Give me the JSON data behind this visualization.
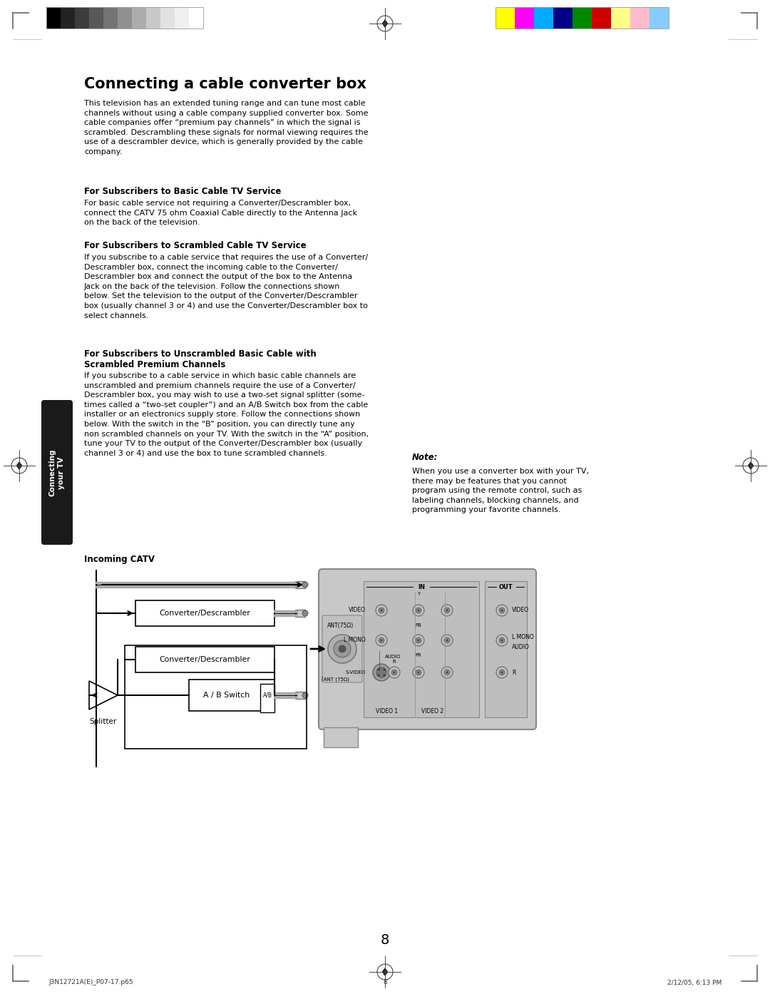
{
  "bg_color": "#ffffff",
  "page_number": "8",
  "footer_left": "J3N12721A(E)_P07-17.p65",
  "footer_right": "2/12/05, 6:13 PM",
  "sidebar_text": "Connecting\nyour TV",
  "sidebar_bg": "#1a1a1a",
  "sidebar_text_color": "#ffffff",
  "main_title": "Connecting a cable converter box",
  "intro_text": "This television has an extended tuning range and can tune most cable\nchannels without using a cable company supplied converter box. Some\ncable companies offer “premium pay channels” in which the signal is\nscrambled. Descrambling these signals for normal viewing requires the\nuse of a descrambler device, which is generally provided by the cable\ncompany.",
  "section1_title": "For Subscribers to Basic Cable TV Service",
  "section1_text": "For basic cable service not requiring a Converter/Descrambler box,\nconnect the CATV 75 ohm Coaxial Cable directly to the Antenna Jack\non the back of the television.",
  "section2_title": "For Subscribers to Scrambled Cable TV Service",
  "section2_text": "If you subscribe to a cable service that requires the use of a Converter/\nDescrambler box, connect the incoming cable to the Converter/\nDescrambler box and connect the output of the box to the Antenna\nJack on the back of the television. Follow the connections shown\nbelow. Set the television to the output of the Converter/Descrambler\nbox (usually channel 3 or 4) and use the Converter/Descrambler box to\nselect channels.",
  "section3_title": "For Subscribers to Unscrambled Basic Cable with\nScrambled Premium Channels",
  "section3_text": "If you subscribe to a cable service in which basic cable channels are\nunscrambled and premium channels require the use of a Converter/\nDescrambler box, you may wish to use a two-set signal splitter (some-\ntimes called a “two-set coupler”) and an A/B Switch box from the cable\ninstaller or an electronics supply store. Follow the connections shown\nbelow. With the switch in the “B” position, you can directly tune any\nnon scrambled channels on your TV. With the switch in the “A” position,\ntune your TV to the output of the Converter/Descrambler box (usually\nchannel 3 or 4) and use the box to tune scrambled channels.",
  "note_title": "Note:",
  "note_text": "When you use a converter box with your TV,\nthere may be features that you cannot\nprogram using the remote control, such as\nlabeling channels, blocking channels, and\nprogramming your favorite channels.",
  "diagram_label": "Incoming CATV",
  "gray_bar_colors": [
    "#000000",
    "#222222",
    "#3c3c3c",
    "#585858",
    "#747474",
    "#909090",
    "#acacac",
    "#c8c8c8",
    "#e2e2e2",
    "#f0f0f0",
    "#ffffff"
  ],
  "color_bar_colors": [
    "#ffff00",
    "#ff00ff",
    "#00aaff",
    "#000088",
    "#008800",
    "#cc0000",
    "#ffff88",
    "#ffbbcc",
    "#88ccff"
  ]
}
